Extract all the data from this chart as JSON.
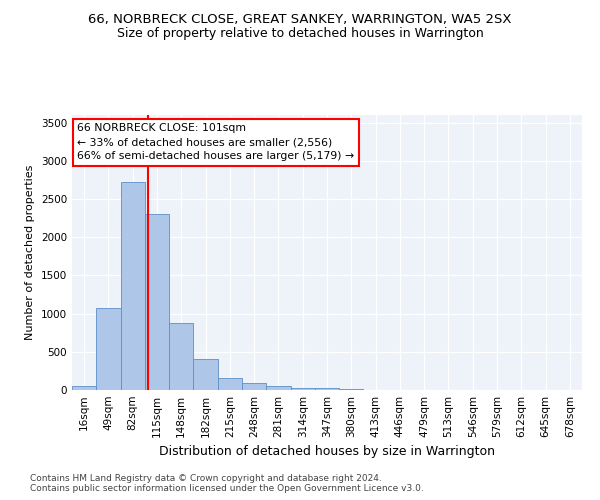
{
  "title1": "66, NORBRECK CLOSE, GREAT SANKEY, WARRINGTON, WA5 2SX",
  "title2": "Size of property relative to detached houses in Warrington",
  "xlabel": "Distribution of detached houses by size in Warrington",
  "ylabel": "Number of detached properties",
  "categories": [
    "16sqm",
    "49sqm",
    "82sqm",
    "115sqm",
    "148sqm",
    "182sqm",
    "215sqm",
    "248sqm",
    "281sqm",
    "314sqm",
    "347sqm",
    "380sqm",
    "413sqm",
    "446sqm",
    "479sqm",
    "513sqm",
    "546sqm",
    "579sqm",
    "612sqm",
    "645sqm",
    "678sqm"
  ],
  "values": [
    50,
    1080,
    2720,
    2300,
    880,
    400,
    160,
    90,
    50,
    30,
    20,
    10,
    5,
    3,
    2,
    1,
    1,
    0,
    0,
    0,
    0
  ],
  "bar_color": "#aec6e8",
  "bar_edge_color": "#5b8fc9",
  "vline_x_idx": 2.62,
  "vline_color": "red",
  "annotation_text": "66 NORBRECK CLOSE: 101sqm\n← 33% of detached houses are smaller (2,556)\n66% of semi-detached houses are larger (5,179) →",
  "annotation_box_color": "white",
  "annotation_box_edge": "red",
  "ylim": [
    0,
    3600
  ],
  "yticks": [
    0,
    500,
    1000,
    1500,
    2000,
    2500,
    3000,
    3500
  ],
  "footer1": "Contains HM Land Registry data © Crown copyright and database right 2024.",
  "footer2": "Contains public sector information licensed under the Open Government Licence v3.0.",
  "plot_bg_color": "#eef2f9",
  "title1_fontsize": 9.5,
  "title2_fontsize": 9,
  "ylabel_fontsize": 8,
  "xlabel_fontsize": 9,
  "tick_fontsize": 7.5,
  "footer_fontsize": 6.5
}
